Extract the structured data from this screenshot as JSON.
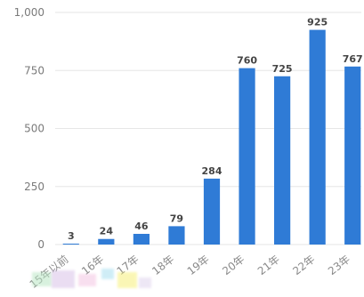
{
  "chart_data": {
    "type": "bar",
    "categories": [
      "15年以前",
      "16年",
      "17年",
      "18年",
      "19年",
      "20年",
      "21年",
      "22年",
      "23年"
    ],
    "values": [
      3,
      24,
      46,
      79,
      284,
      760,
      725,
      925,
      767
    ],
    "data_labels": [
      "3",
      "24",
      "46",
      "79",
      "284",
      "760",
      "725",
      "925",
      "767"
    ],
    "yticks": [
      0,
      250,
      500,
      750,
      1000
    ],
    "ytick_labels": [
      "0",
      "250",
      "500",
      "750",
      "1,000"
    ],
    "ylim": [
      0,
      1000
    ],
    "grid": true,
    "title": "",
    "xlabel": "",
    "ylabel": "",
    "bar_color": "#2f7bd6",
    "grid_color": "#e6e6e6"
  }
}
